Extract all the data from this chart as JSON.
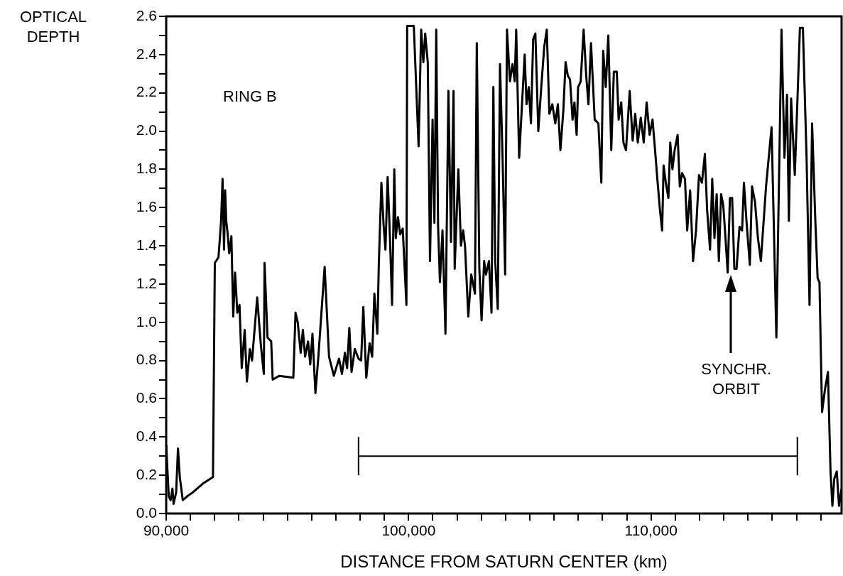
{
  "chart_data": {
    "type": "line",
    "ylabel": "OPTICAL DEPTH",
    "xlabel": "DISTANCE FROM SATURN CENTER (km)",
    "xlim": [
      90000,
      117860
    ],
    "ylim": [
      0,
      2.6
    ],
    "xticks": [
      {
        "value": 90000,
        "label": "90,000"
      },
      {
        "value": 91000,
        "label": null
      },
      {
        "value": 92000,
        "label": null
      },
      {
        "value": 93000,
        "label": null
      },
      {
        "value": 94000,
        "label": null
      },
      {
        "value": 95000,
        "label": null
      },
      {
        "value": 96000,
        "label": null
      },
      {
        "value": 97000,
        "label": null
      },
      {
        "value": 98000,
        "label": null
      },
      {
        "value": 99000,
        "label": null
      },
      {
        "value": 100000,
        "label": "100,000"
      },
      {
        "value": 101000,
        "label": null
      },
      {
        "value": 102000,
        "label": null
      },
      {
        "value": 103000,
        "label": null
      },
      {
        "value": 104000,
        "label": null
      },
      {
        "value": 105000,
        "label": null
      },
      {
        "value": 106000,
        "label": null
      },
      {
        "value": 107000,
        "label": null
      },
      {
        "value": 108000,
        "label": null
      },
      {
        "value": 109000,
        "label": null
      },
      {
        "value": 110000,
        "label": "110,000"
      },
      {
        "value": 111000,
        "label": null
      },
      {
        "value": 112000,
        "label": null
      },
      {
        "value": 113000,
        "label": null
      },
      {
        "value": 114000,
        "label": null
      },
      {
        "value": 115000,
        "label": null
      },
      {
        "value": 116000,
        "label": null
      },
      {
        "value": 117000,
        "label": null
      }
    ],
    "yticks": [
      {
        "value": 0,
        "label": "0.0"
      },
      {
        "value": 0.1,
        "label": null
      },
      0.2,
      {
        "value": 0.3,
        "label": null
      },
      0.4,
      {
        "value": 0.5,
        "label": null
      },
      0.6,
      {
        "value": 0.7,
        "label": null
      },
      0.8,
      {
        "value": 0.9,
        "label": null
      },
      {
        "value": 1,
        "label": "1.0"
      },
      {
        "value": 1.1,
        "label": null
      },
      1.2,
      {
        "value": 1.3,
        "label": null
      },
      1.4,
      {
        "value": 1.5,
        "label": null
      },
      1.6,
      {
        "value": 1.7,
        "label": null
      },
      1.8,
      {
        "value": 1.9,
        "label": null
      },
      {
        "value": 2,
        "label": "2.0"
      },
      {
        "value": 2.1,
        "label": null
      },
      2.2,
      {
        "value": 2.3,
        "label": null
      },
      2.4,
      {
        "value": 2.5,
        "label": null
      },
      2.6
    ],
    "grid": false,
    "legend": false,
    "marker": "none",
    "line_style": "solid",
    "annotations": [
      "RING B",
      "SYNCHR. ORBIT"
    ],
    "series": [
      {
        "type": "line",
        "color": "#000000",
        "x": [
          97934,
          116036
        ],
        "values": [
          0.3,
          0.3
        ],
        "errors": [
          0.1,
          0.1
        ]
      },
      {
        "color": "#000000",
        "x": [
          90000,
          90106,
          90182,
          90258,
          90304,
          90410,
          90486,
          90562,
          90684,
          90866,
          91094,
          91550,
          91930,
          92006,
          92158,
          92265,
          92326,
          92386,
          92432,
          92478,
          92538,
          92599,
          92690,
          92766,
          92842,
          92934,
          93025,
          93116,
          93238,
          93329,
          93450,
          93542,
          93754,
          93906,
          94028,
          94058,
          94180,
          94332,
          94393,
          94666,
          95244,
          95335,
          95426,
          95548,
          95639,
          95730,
          95852,
          95943,
          96034,
          96156,
          96278,
          96536,
          96718,
          96916,
          97129,
          97250,
          97372,
          97463,
          97554,
          97646,
          97782,
          97934,
          98041,
          98132,
          98254,
          98390,
          98497,
          98588,
          98710,
          98770,
          98877,
          98968,
          99044,
          99135,
          99226,
          99318,
          99409,
          99470,
          99561,
          99652,
          99758,
          99910,
          99941,
          100214,
          100412,
          100518,
          100608,
          100684,
          100790,
          100882,
          100988,
          101064,
          101140,
          101216,
          101292,
          101398,
          101520,
          101642,
          101748,
          101854,
          101900,
          102052,
          102158,
          102250,
          102326,
          102462,
          102584,
          102736,
          102812,
          102918,
          103010,
          103116,
          103192,
          103314,
          103420,
          103496,
          103572,
          103678,
          103770,
          103876,
          103982,
          104058,
          104180,
          104286,
          104378,
          104438,
          104560,
          104682,
          104788,
          104864,
          104955,
          105046,
          105138,
          105229,
          105350,
          105472,
          105594,
          105700,
          105806,
          105928,
          106050,
          106156,
          106262,
          106384,
          106475,
          106566,
          106658,
          106764,
          106840,
          106931,
          106992,
          107098,
          107220,
          107326,
          107418,
          107524,
          107676,
          107828,
          107950,
          108026,
          108132,
          108238,
          108360,
          108466,
          108588,
          108664,
          108770,
          108862,
          108968,
          109120,
          109242,
          109348,
          109454,
          109576,
          109698,
          109819,
          109941,
          110062,
          110154,
          110260,
          110366,
          110458,
          110518,
          110610,
          110716,
          110792,
          110883,
          110974,
          111096,
          111187,
          111278,
          111400,
          111491,
          111613,
          111734,
          111856,
          111978,
          112099,
          112221,
          112312,
          112434,
          112525,
          112616,
          112707,
          112798,
          112890,
          112981,
          113072,
          113163,
          113254,
          113346,
          113437,
          113528,
          113650,
          113756,
          113832,
          113954,
          114075,
          114166,
          114288,
          114410,
          114531,
          114744,
          114972,
          115170,
          115382,
          115504,
          115610,
          115686,
          115778,
          115930,
          116036,
          116142,
          116264,
          116416,
          116538,
          116644,
          116781,
          116872,
          116948,
          117054,
          117176,
          117298,
          117404,
          117480,
          117556,
          117662,
          117754,
          117860
        ],
        "values": [
          0.36,
          0.09,
          0.07,
          0.13,
          0.05,
          0.11,
          0.34,
          0.19,
          0.07,
          0.09,
          0.11,
          0.16,
          0.19,
          1.31,
          1.34,
          1.53,
          1.75,
          1.38,
          1.69,
          1.53,
          1.46,
          1.36,
          1.45,
          1.03,
          1.26,
          1.05,
          1.09,
          0.76,
          0.96,
          0.69,
          0.86,
          0.8,
          1.13,
          0.88,
          0.73,
          1.31,
          0.92,
          0.9,
          0.7,
          0.72,
          0.71,
          1.05,
          1.0,
          0.84,
          0.96,
          0.82,
          0.9,
          0.78,
          0.94,
          0.63,
          0.82,
          1.29,
          0.82,
          0.72,
          0.81,
          0.73,
          0.84,
          0.76,
          0.97,
          0.74,
          0.86,
          0.81,
          0.8,
          1.08,
          0.71,
          0.89,
          0.82,
          1.15,
          0.94,
          1.3,
          1.73,
          1.51,
          1.38,
          1.76,
          1.46,
          1.09,
          1.8,
          1.44,
          1.55,
          1.46,
          1.49,
          1.09,
          2.55,
          2.55,
          1.92,
          2.53,
          2.36,
          2.51,
          2.36,
          1.32,
          2.06,
          1.52,
          2.53,
          1.5,
          1.21,
          1.48,
          0.94,
          2.21,
          1.42,
          2.21,
          1.28,
          1.8,
          1.4,
          1.48,
          1.4,
          1.03,
          1.25,
          1.15,
          2.46,
          1.28,
          1.01,
          1.32,
          1.25,
          1.32,
          1.05,
          2.23,
          1.32,
          1.07,
          2.35,
          1.86,
          1.25,
          2.53,
          2.26,
          2.35,
          2.26,
          2.53,
          1.86,
          2.15,
          2.4,
          2.14,
          2.23,
          2.04,
          2.48,
          2.51,
          2.0,
          2.23,
          2.44,
          2.53,
          2.09,
          2.14,
          2.04,
          2.14,
          1.9,
          2.11,
          2.36,
          2.29,
          2.27,
          2.06,
          2.15,
          1.98,
          2.23,
          2.26,
          2.53,
          2.29,
          2.14,
          2.46,
          2.06,
          2.04,
          1.73,
          2.42,
          2.23,
          2.5,
          1.9,
          2.31,
          2.31,
          2.06,
          2.15,
          1.94,
          1.9,
          2.21,
          1.95,
          2.09,
          1.94,
          2.07,
          1.94,
          2.15,
          1.98,
          2.06,
          1.92,
          1.75,
          1.59,
          1.48,
          1.82,
          1.73,
          1.65,
          1.94,
          1.8,
          1.9,
          1.98,
          1.71,
          1.78,
          1.75,
          1.48,
          1.69,
          1.32,
          1.48,
          1.77,
          1.73,
          1.88,
          1.59,
          1.38,
          1.75,
          1.44,
          1.67,
          1.32,
          1.67,
          1.61,
          1.44,
          1.26,
          1.65,
          1.65,
          1.28,
          1.28,
          1.5,
          1.48,
          1.73,
          1.5,
          1.3,
          1.71,
          1.63,
          1.44,
          1.32,
          1.71,
          2.02,
          0.92,
          2.53,
          1.86,
          2.19,
          1.53,
          2.17,
          1.77,
          2.15,
          2.54,
          2.54,
          1.86,
          1.09,
          2.04,
          1.52,
          1.23,
          1.21,
          0.53,
          0.65,
          0.74,
          0.22,
          0.04,
          0.18,
          0.22,
          0.04,
          0.13
        ]
      }
    ]
  }
}
